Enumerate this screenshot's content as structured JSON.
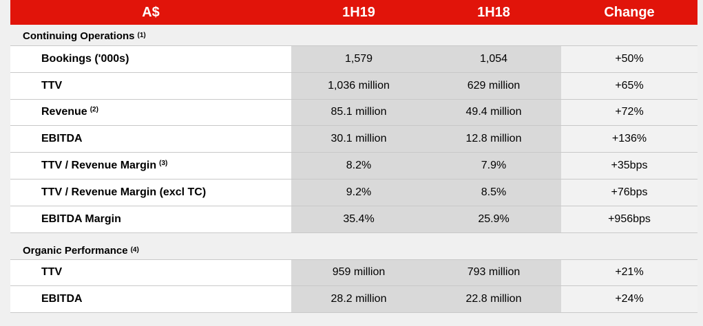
{
  "header": {
    "label": "A$",
    "col1": "1H19",
    "col2": "1H18",
    "col3": "Change"
  },
  "sections": [
    {
      "title": "Continuing Operations",
      "note": "(1)",
      "rows": [
        {
          "label": "Bookings ('000s)",
          "note": "",
          "v1": "1,579",
          "v2": "1,054",
          "change": "+50%"
        },
        {
          "label": "TTV",
          "note": "",
          "v1": "1,036 million",
          "v2": "629 million",
          "change": "+65%"
        },
        {
          "label": "Revenue",
          "note": "(2)",
          "v1": "85.1 million",
          "v2": "49.4 million",
          "change": "+72%"
        },
        {
          "label": "EBITDA",
          "note": "",
          "v1": "30.1 million",
          "v2": "12.8 million",
          "change": "+136%"
        },
        {
          "label": "TTV / Revenue Margin",
          "note": "(3)",
          "v1": "8.2%",
          "v2": "7.9%",
          "change": "+35bps"
        },
        {
          "label": "TTV / Revenue Margin (excl TC)",
          "note": "",
          "v1": "9.2%",
          "v2": "8.5%",
          "change": "+76bps"
        },
        {
          "label": "EBITDA Margin",
          "note": "",
          "v1": "35.4%",
          "v2": "25.9%",
          "change": "+956bps"
        }
      ]
    },
    {
      "title": "Organic Performance",
      "note": "(4)",
      "rows": [
        {
          "label": "TTV",
          "note": "",
          "v1": "959 million",
          "v2": "793 million",
          "change": "+21%"
        },
        {
          "label": "EBITDA",
          "note": "",
          "v1": "28.2 million",
          "v2": "22.8 million",
          "change": "+24%"
        }
      ]
    }
  ],
  "colors": {
    "header_bg": "#e1140a",
    "header_text": "#ffffff",
    "value_bg": "#d9d9d9",
    "change_bg": "#f2f2f2"
  }
}
